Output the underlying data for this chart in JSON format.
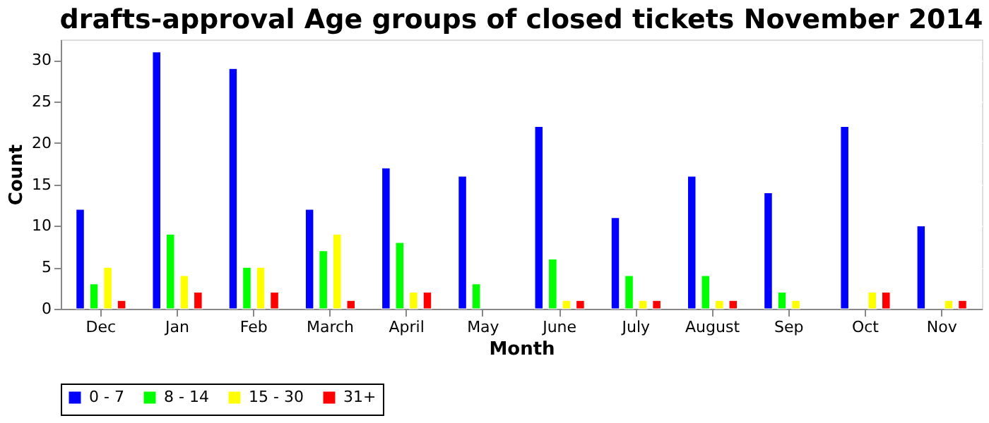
{
  "chart_data": {
    "type": "bar",
    "title": "drafts-approval Age groups of closed tickets November 2014",
    "xlabel": "Month",
    "ylabel": "Count",
    "categories": [
      "Dec",
      "Jan",
      "Feb",
      "March",
      "April",
      "May",
      "June",
      "July",
      "August",
      "Sep",
      "Oct",
      "Nov"
    ],
    "series": [
      {
        "name": "0 - 7",
        "color": "#0000ff",
        "values": [
          12,
          31,
          29,
          12,
          17,
          16,
          22,
          11,
          16,
          14,
          22,
          10
        ]
      },
      {
        "name": "8 - 14",
        "color": "#00ff00",
        "values": [
          3,
          9,
          5,
          7,
          8,
          3,
          6,
          4,
          4,
          2,
          null,
          null
        ]
      },
      {
        "name": "15 - 30",
        "color": "#ffff00",
        "values": [
          5,
          4,
          5,
          9,
          2,
          null,
          1,
          1,
          1,
          1,
          2,
          1
        ]
      },
      {
        "name": "31+",
        "color": "#ff0000",
        "values": [
          1,
          2,
          2,
          1,
          2,
          null,
          1,
          1,
          1,
          null,
          2,
          1
        ]
      }
    ],
    "ylim": [
      0,
      32.5
    ],
    "yticks": [
      0,
      5,
      10,
      15,
      20,
      25,
      30
    ],
    "grid": "y",
    "legend": "bottom"
  }
}
